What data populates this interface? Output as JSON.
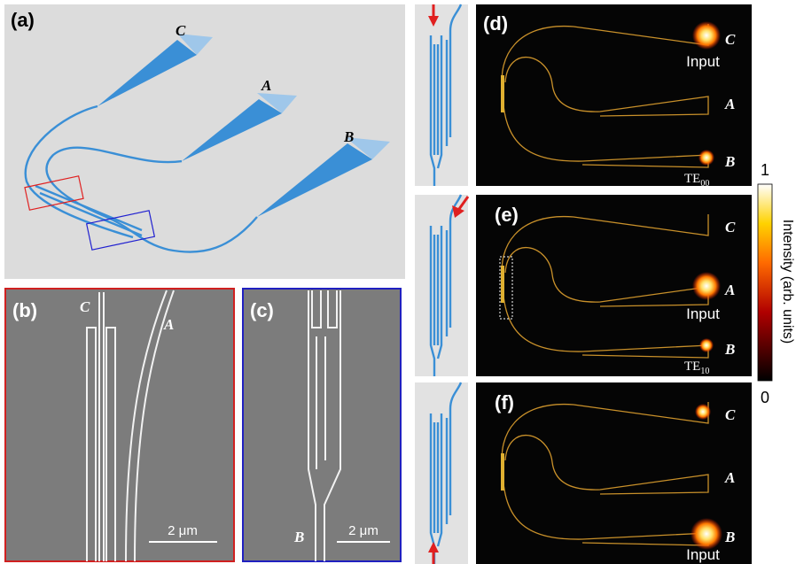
{
  "panels": {
    "a": {
      "label": "(a)",
      "ports": [
        "C",
        "A",
        "B"
      ]
    },
    "b": {
      "label": "(b)",
      "ports": [
        "C",
        "A"
      ],
      "scale_bar": "2 μm"
    },
    "c": {
      "label": "(c)",
      "ports": [
        "B"
      ],
      "scale_bar": "2 μm"
    },
    "d": {
      "label": "(d)",
      "ports": [
        "C",
        "A",
        "B"
      ],
      "input": "Input",
      "mode": {
        "base": "TE",
        "sub": "00"
      }
    },
    "e": {
      "label": "(e)",
      "ports": [
        "C",
        "A",
        "B"
      ],
      "input": "Input",
      "mode": {
        "base": "TE",
        "sub": "10"
      }
    },
    "f": {
      "label": "(f)",
      "ports": [
        "C",
        "A",
        "B"
      ],
      "input": "Input"
    }
  },
  "colorbar": {
    "max": 1,
    "min": 0,
    "title": "Intensity (arb. units)"
  }
}
